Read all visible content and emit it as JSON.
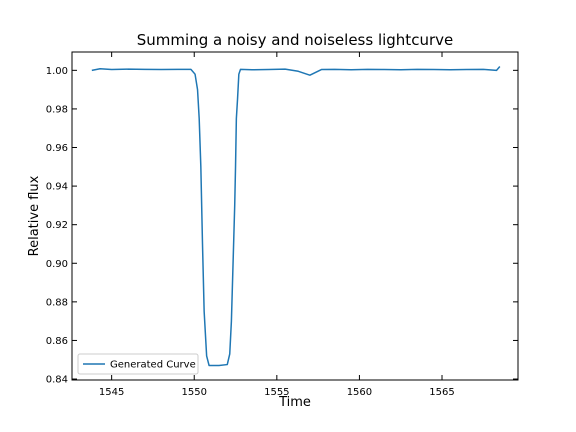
{
  "chart_data": {
    "type": "line",
    "title": "Summing a noisy and noiseless lightcurve",
    "xlabel": "Time",
    "ylabel": "Relative flux",
    "xlim": [
      1542.6,
      1569.6
    ],
    "ylim": [
      0.8395,
      1.0095
    ],
    "xticks": [
      1545,
      1550,
      1555,
      1560,
      1565
    ],
    "yticks": [
      0.84,
      0.86,
      0.88,
      0.9,
      0.92,
      0.94,
      0.96,
      0.98,
      1.0
    ],
    "ytick_labels": [
      "0.84",
      "0.86",
      "0.88",
      "0.90",
      "0.92",
      "0.94",
      "0.96",
      "0.98",
      "1.00"
    ],
    "grid": false,
    "legend_position": "lower-left",
    "color": "#1f77b4",
    "series": [
      {
        "name": "Generated Curve",
        "x": [
          1543.8,
          1544.3,
          1545.0,
          1546.0,
          1547.0,
          1548.0,
          1549.0,
          1549.8,
          1550.05,
          1550.2,
          1550.3,
          1550.4,
          1550.5,
          1550.6,
          1550.75,
          1550.9,
          1551.0,
          1551.5,
          1552.0,
          1552.15,
          1552.25,
          1552.35,
          1552.45,
          1552.5,
          1552.55,
          1552.62,
          1552.7,
          1552.8,
          1553.5,
          1554.5,
          1555.5,
          1556.3,
          1557.0,
          1557.7,
          1558.5,
          1559.5,
          1560.5,
          1561.5,
          1562.5,
          1563.5,
          1564.5,
          1565.5,
          1566.5,
          1567.5,
          1568.3,
          1568.5
        ],
        "y": [
          1.0,
          1.0008,
          1.0004,
          1.0006,
          1.0005,
          1.0004,
          1.0005,
          1.0005,
          0.998,
          0.99,
          0.975,
          0.95,
          0.91,
          0.875,
          0.852,
          0.847,
          0.847,
          0.847,
          0.8475,
          0.853,
          0.87,
          0.9,
          0.93,
          0.95,
          0.975,
          0.985,
          0.998,
          1.0005,
          1.0003,
          1.0004,
          1.0006,
          0.9995,
          0.9975,
          1.0004,
          1.0005,
          1.0003,
          1.0005,
          1.0004,
          1.0003,
          1.0005,
          1.0004,
          1.0003,
          1.0004,
          1.0005,
          1.0,
          1.002
        ]
      }
    ]
  }
}
